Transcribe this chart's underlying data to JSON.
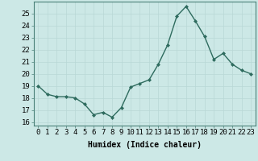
{
  "x": [
    0,
    1,
    2,
    3,
    4,
    5,
    6,
    7,
    8,
    9,
    10,
    11,
    12,
    13,
    14,
    15,
    16,
    17,
    18,
    19,
    20,
    21,
    22,
    23
  ],
  "y": [
    19,
    18.3,
    18.1,
    18.1,
    18.0,
    17.5,
    16.6,
    16.8,
    16.4,
    17.2,
    18.9,
    19.2,
    19.5,
    20.8,
    22.4,
    24.8,
    25.6,
    24.4,
    23.1,
    21.2,
    21.7,
    20.8,
    20.3,
    20.0
  ],
  "line_color": "#2e6b5e",
  "marker": "D",
  "markersize": 2.0,
  "linewidth": 1.0,
  "bg_color": "#cce8e6",
  "grid_color": "#b8d8d6",
  "xlabel": "Humidex (Indice chaleur)",
  "xlabel_fontsize": 7,
  "yticks": [
    16,
    17,
    18,
    19,
    20,
    21,
    22,
    23,
    24,
    25
  ],
  "xticks": [
    0,
    1,
    2,
    3,
    4,
    5,
    6,
    7,
    8,
    9,
    10,
    11,
    12,
    13,
    14,
    15,
    16,
    17,
    18,
    19,
    20,
    21,
    22,
    23
  ],
  "ylim": [
    15.7,
    26.0
  ],
  "xlim": [
    -0.5,
    23.5
  ],
  "tick_fontsize": 6.5,
  "axes_color": "#4a8078"
}
